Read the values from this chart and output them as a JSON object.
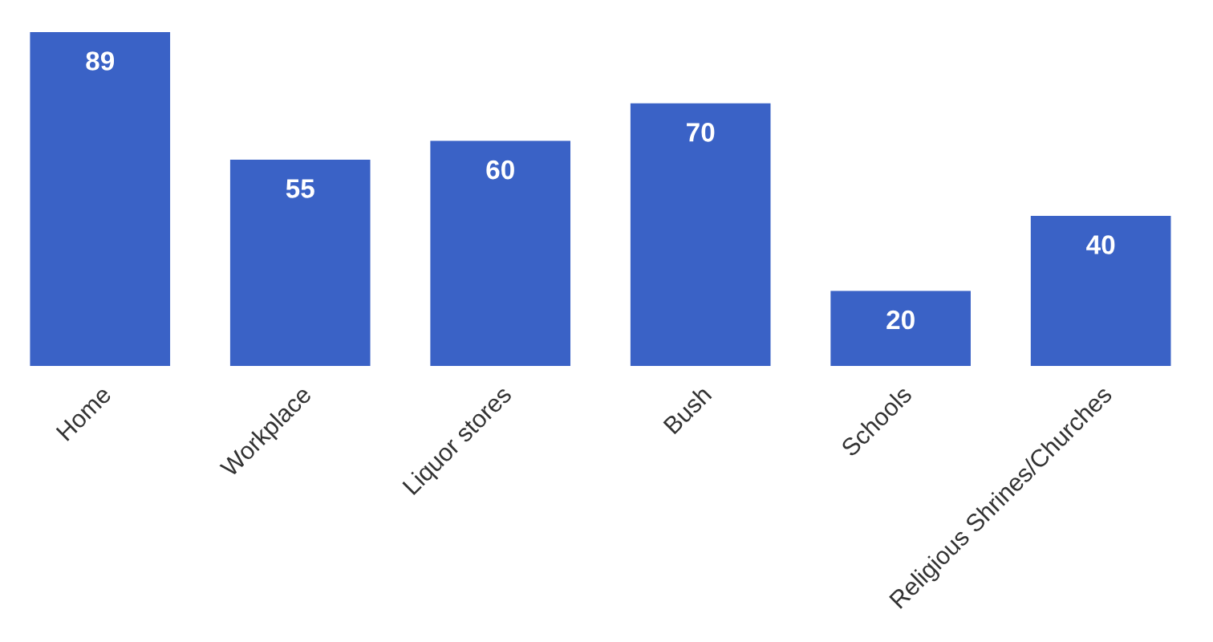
{
  "chart_data": {
    "type": "bar",
    "categories": [
      "Home",
      "Workplace",
      "Liquor stores",
      "Bush",
      "Schools",
      "Religious Shrines/Churches"
    ],
    "values": [
      89,
      55,
      60,
      70,
      20,
      40
    ],
    "color": "#3a62c6",
    "data_labels": true,
    "grid": false,
    "legend": false
  }
}
